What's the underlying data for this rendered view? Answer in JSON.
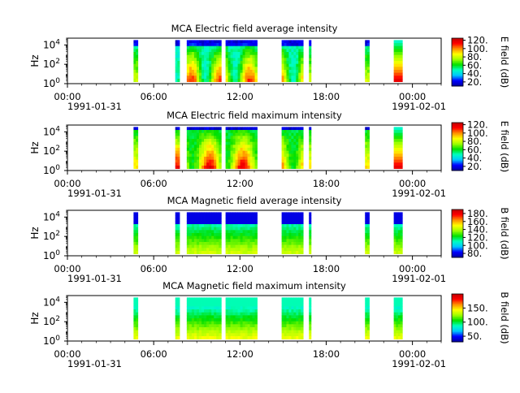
{
  "chart_data": [
    {
      "type": "heatmap",
      "title": "MCA  Electric field average intensity",
      "ylabel": "Hz",
      "y_scale": "log",
      "y_ticks": [
        {
          "base": "10",
          "exp": "0"
        },
        {
          "base": "10",
          "exp": "2"
        },
        {
          "base": "10",
          "exp": "4"
        }
      ],
      "x_ticks": [
        "00:00",
        "06:00",
        "12:00",
        "18:00",
        "00:00"
      ],
      "x_dates": [
        "1991-01-31",
        "1991-02-01"
      ],
      "xlim_hours": [
        0,
        26
      ],
      "colorbar": {
        "label": "E field (dB)",
        "ticks": [
          "20.",
          "40.",
          "60.",
          "80.",
          "100.",
          "120."
        ],
        "range": [
          10,
          125
        ]
      },
      "bands_hours": [
        [
          4.6,
          4.9
        ],
        [
          7.5,
          7.8
        ],
        [
          8.3,
          10.7
        ],
        [
          11.0,
          13.2
        ],
        [
          14.9,
          16.4
        ],
        [
          16.8,
          16.95
        ],
        [
          20.7,
          21.0
        ],
        [
          22.7,
          23.3
        ]
      ],
      "profile": "E_avg"
    },
    {
      "type": "heatmap",
      "title": "MCA  Electric field maximum intensity",
      "ylabel": "Hz",
      "y_scale": "log",
      "y_ticks": [
        {
          "base": "10",
          "exp": "0"
        },
        {
          "base": "10",
          "exp": "2"
        },
        {
          "base": "10",
          "exp": "4"
        }
      ],
      "x_ticks": [
        "00:00",
        "06:00",
        "12:00",
        "18:00",
        "00:00"
      ],
      "x_dates": [
        "1991-01-31",
        "1991-02-01"
      ],
      "xlim_hours": [
        0,
        26
      ],
      "colorbar": {
        "label": "E field (dB)",
        "ticks": [
          "20.",
          "40.",
          "60.",
          "80.",
          "100.",
          "120."
        ],
        "range": [
          10,
          125
        ]
      },
      "bands_hours": [
        [
          4.6,
          4.9
        ],
        [
          7.5,
          7.8
        ],
        [
          8.3,
          10.7
        ],
        [
          11.0,
          13.2
        ],
        [
          14.9,
          16.4
        ],
        [
          16.8,
          16.95
        ],
        [
          20.7,
          21.0
        ],
        [
          22.7,
          23.3
        ]
      ],
      "profile": "E_max"
    },
    {
      "type": "heatmap",
      "title": "MCA  Magnetic field average intensity",
      "ylabel": "Hz",
      "y_scale": "log",
      "y_ticks": [
        {
          "base": "10",
          "exp": "0"
        },
        {
          "base": "10",
          "exp": "2"
        },
        {
          "base": "10",
          "exp": "4"
        }
      ],
      "x_ticks": [
        "00:00",
        "06:00",
        "12:00",
        "18:00",
        "00:00"
      ],
      "x_dates": [
        "1991-01-31",
        "1991-02-01"
      ],
      "xlim_hours": [
        0,
        26
      ],
      "colorbar": {
        "label": "B field (dB)",
        "ticks": [
          "80.",
          "100.",
          "120.",
          "140.",
          "160.",
          "180."
        ],
        "range": [
          70,
          190
        ]
      },
      "bands_hours": [
        [
          4.6,
          4.9
        ],
        [
          7.5,
          7.8
        ],
        [
          8.3,
          10.7
        ],
        [
          11.0,
          13.2
        ],
        [
          14.9,
          16.4
        ],
        [
          16.8,
          16.95
        ],
        [
          20.7,
          21.0
        ],
        [
          22.7,
          23.3
        ]
      ],
      "profile": "B_avg"
    },
    {
      "type": "heatmap",
      "title": "MCA  Magnetic field maximum intensity",
      "ylabel": "Hz",
      "y_scale": "log",
      "y_ticks": [
        {
          "base": "10",
          "exp": "0"
        },
        {
          "base": "10",
          "exp": "2"
        },
        {
          "base": "10",
          "exp": "4"
        }
      ],
      "x_ticks": [
        "00:00",
        "06:00",
        "12:00",
        "18:00",
        "00:00"
      ],
      "x_dates": [
        "1991-01-31",
        "1991-02-01"
      ],
      "xlim_hours": [
        0,
        26
      ],
      "colorbar": {
        "label": "B field (dB)",
        "ticks": [
          "50.",
          "100.",
          "150."
        ],
        "range": [
          30,
          200
        ]
      },
      "bands_hours": [
        [
          4.6,
          4.9
        ],
        [
          7.5,
          7.8
        ],
        [
          8.3,
          10.7
        ],
        [
          11.0,
          13.2
        ],
        [
          14.9,
          16.4
        ],
        [
          16.8,
          16.95
        ],
        [
          20.7,
          21.0
        ],
        [
          22.7,
          23.3
        ]
      ],
      "profile": "B_max"
    }
  ],
  "colors": {
    "colormap": [
      "#0000a0",
      "#0000ff",
      "#00c8ff",
      "#00ffc0",
      "#00e000",
      "#a0ff00",
      "#ffff00",
      "#ff9000",
      "#ff0000",
      "#c00000"
    ]
  }
}
